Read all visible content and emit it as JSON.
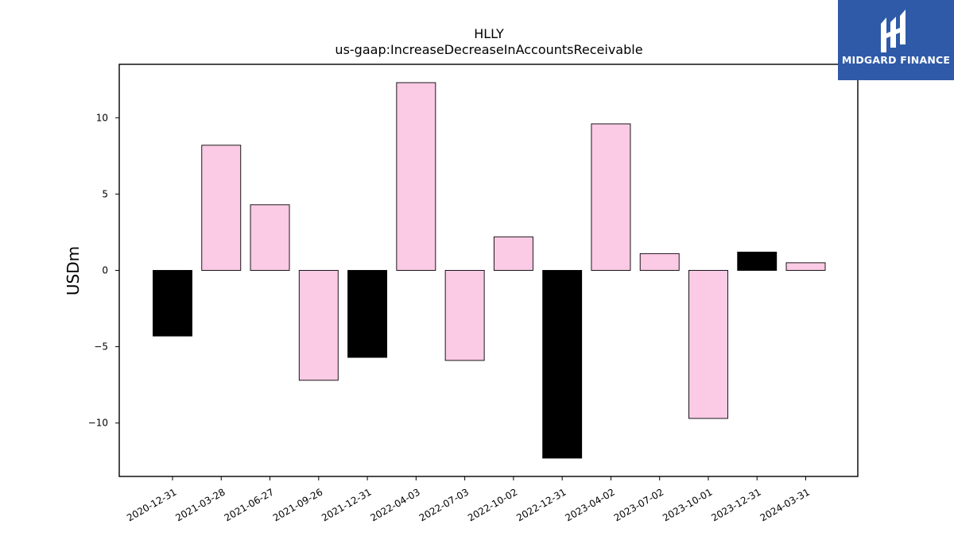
{
  "logo": {
    "text": "MIDGARD FINANCE"
  },
  "colors": {
    "positive": "#fbcae4",
    "negative": "#000000",
    "logo_bg": "#2f5aa8"
  },
  "chart_data": {
    "type": "bar",
    "title": "HLLY",
    "subtitle": "us-gaap:IncreaseDecreaseInAccountsReceivable",
    "xlabel": "",
    "ylabel": "USDm",
    "ylim": [
      -13.5,
      13.5
    ],
    "yticks": [
      10,
      5,
      0,
      -5,
      -10
    ],
    "ytick_labels": [
      "10",
      "5",
      "0",
      "−5",
      "−10"
    ],
    "grid": false,
    "categories": [
      "2020-12-31",
      "2021-03-28",
      "2021-06-27",
      "2021-09-26",
      "2021-12-31",
      "2022-04-03",
      "2022-07-03",
      "2022-10-02",
      "2022-12-31",
      "2023-04-02",
      "2023-07-02",
      "2023-10-01",
      "2023-12-31",
      "2024-03-31"
    ],
    "values": [
      -4.3,
      8.2,
      4.3,
      -7.2,
      -5.7,
      12.3,
      -5.9,
      2.2,
      -12.3,
      9.6,
      1.1,
      -9.7,
      1.2,
      0.5
    ],
    "bar_colors": [
      "#000000",
      "#fbcae4",
      "#fbcae4",
      "#fbcae4",
      "#000000",
      "#fbcae4",
      "#fbcae4",
      "#fbcae4",
      "#000000",
      "#fbcae4",
      "#fbcae4",
      "#fbcae4",
      "#000000",
      "#fbcae4"
    ]
  }
}
